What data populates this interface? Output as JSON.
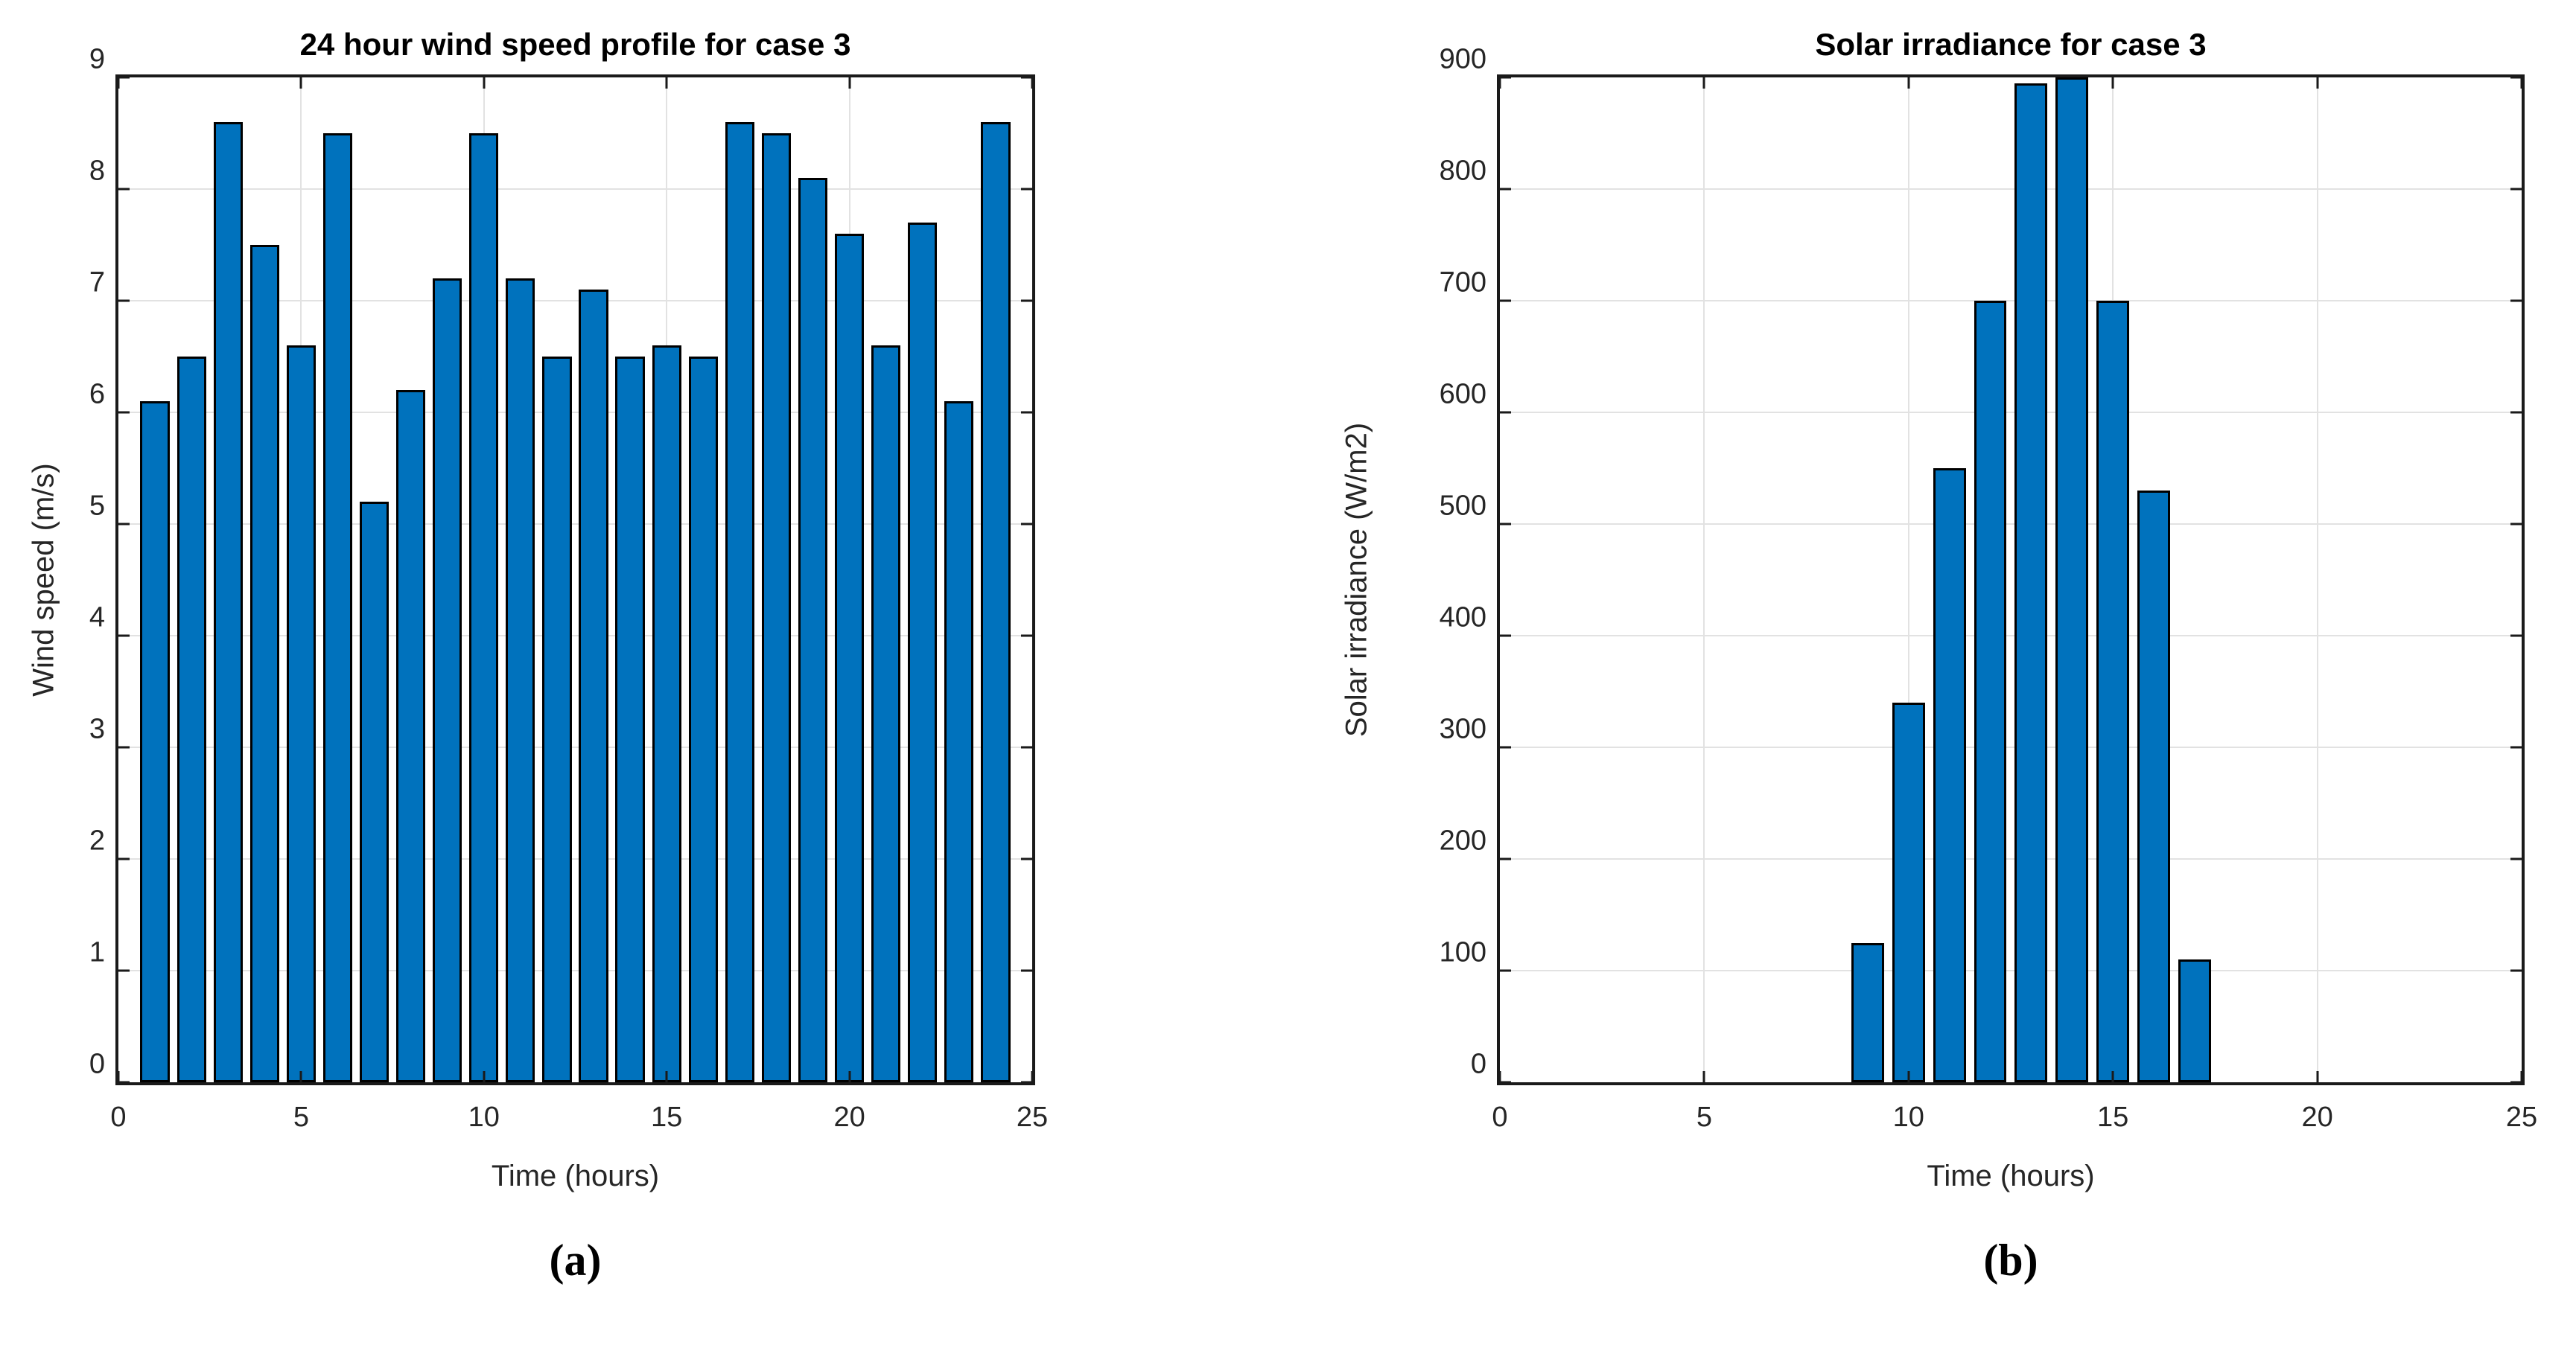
{
  "figure": {
    "background": "#ffffff"
  },
  "chart_data": [
    {
      "id": "wind",
      "type": "bar",
      "title": "24 hour wind speed profile for case 3",
      "xlabel": "Time (hours)",
      "ylabel": "Wind speed (m/s)",
      "caption": "(a)",
      "x": [
        1,
        2,
        3,
        4,
        5,
        6,
        7,
        8,
        9,
        10,
        11,
        12,
        13,
        14,
        15,
        16,
        17,
        18,
        19,
        20,
        21,
        22,
        23,
        24
      ],
      "values": [
        6.1,
        6.5,
        8.6,
        7.5,
        6.6,
        8.5,
        5.2,
        6.2,
        7.2,
        8.5,
        7.2,
        6.5,
        7.1,
        6.5,
        6.6,
        6.5,
        8.6,
        8.5,
        8.1,
        7.6,
        6.6,
        7.7,
        6.1,
        8.6
      ],
      "xlim": [
        0,
        25
      ],
      "ylim": [
        0,
        9
      ],
      "xticks": [
        0,
        5,
        10,
        15,
        20,
        25
      ],
      "yticks": [
        0,
        1,
        2,
        3,
        4,
        5,
        6,
        7,
        8,
        9
      ],
      "bar_width": 0.8,
      "bar_color": "#0072BD",
      "bar_edge_color": "#000000",
      "grid": true,
      "legend": null
    },
    {
      "id": "solar",
      "type": "bar",
      "title": "Solar irradiance for case 3",
      "xlabel": "Time (hours)",
      "ylabel": "Solar irradiance (W/m2)",
      "caption": "(b)",
      "x": [
        9,
        10,
        11,
        12,
        13,
        14,
        15,
        16,
        17
      ],
      "values": [
        125,
        340,
        550,
        700,
        895,
        900,
        700,
        530,
        110
      ],
      "xlim": [
        0,
        25
      ],
      "ylim": [
        0,
        900
      ],
      "xticks": [
        0,
        5,
        10,
        15,
        20,
        25
      ],
      "yticks": [
        0,
        100,
        200,
        300,
        400,
        500,
        600,
        700,
        800,
        900
      ],
      "bar_width": 0.8,
      "bar_color": "#0072BD",
      "bar_edge_color": "#000000",
      "grid": true,
      "legend": null
    }
  ]
}
